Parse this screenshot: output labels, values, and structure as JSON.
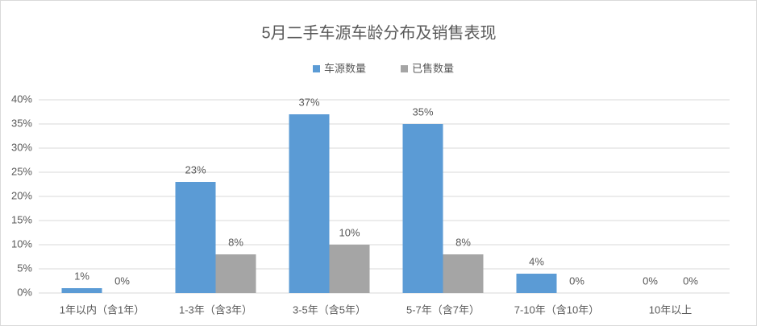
{
  "chart_data": {
    "type": "bar",
    "title": "5月二手车源车龄分布及销售表现",
    "categories": [
      "1年以内（含1年）",
      "1-3年（含3年）",
      "3-5年（含5年）",
      "5-7年（含7年）",
      "7-10年（含10年）",
      "10年以上"
    ],
    "series": [
      {
        "name": "车源数量",
        "color": "#5b9bd5",
        "values": [
          1,
          23,
          37,
          35,
          4,
          0
        ],
        "value_labels": [
          "1%",
          "23%",
          "37%",
          "35%",
          "4%",
          "0%"
        ]
      },
      {
        "name": "已售数量",
        "color": "#a5a5a5",
        "values": [
          0,
          8,
          10,
          8,
          0,
          0
        ],
        "value_labels": [
          "0%",
          "8%",
          "10%",
          "8%",
          "0%",
          "0%"
        ]
      }
    ],
    "ylim": [
      0,
      40
    ],
    "yticks": [
      {
        "value": 0,
        "label": "0%"
      },
      {
        "value": 5,
        "label": "5%"
      },
      {
        "value": 10,
        "label": "10%"
      },
      {
        "value": 15,
        "label": "15%"
      },
      {
        "value": 20,
        "label": "20%"
      },
      {
        "value": 25,
        "label": "25%"
      },
      {
        "value": 30,
        "label": "30%"
      },
      {
        "value": 35,
        "label": "35%"
      },
      {
        "value": 40,
        "label": "40%"
      }
    ],
    "grid": true,
    "legend": "top"
  }
}
